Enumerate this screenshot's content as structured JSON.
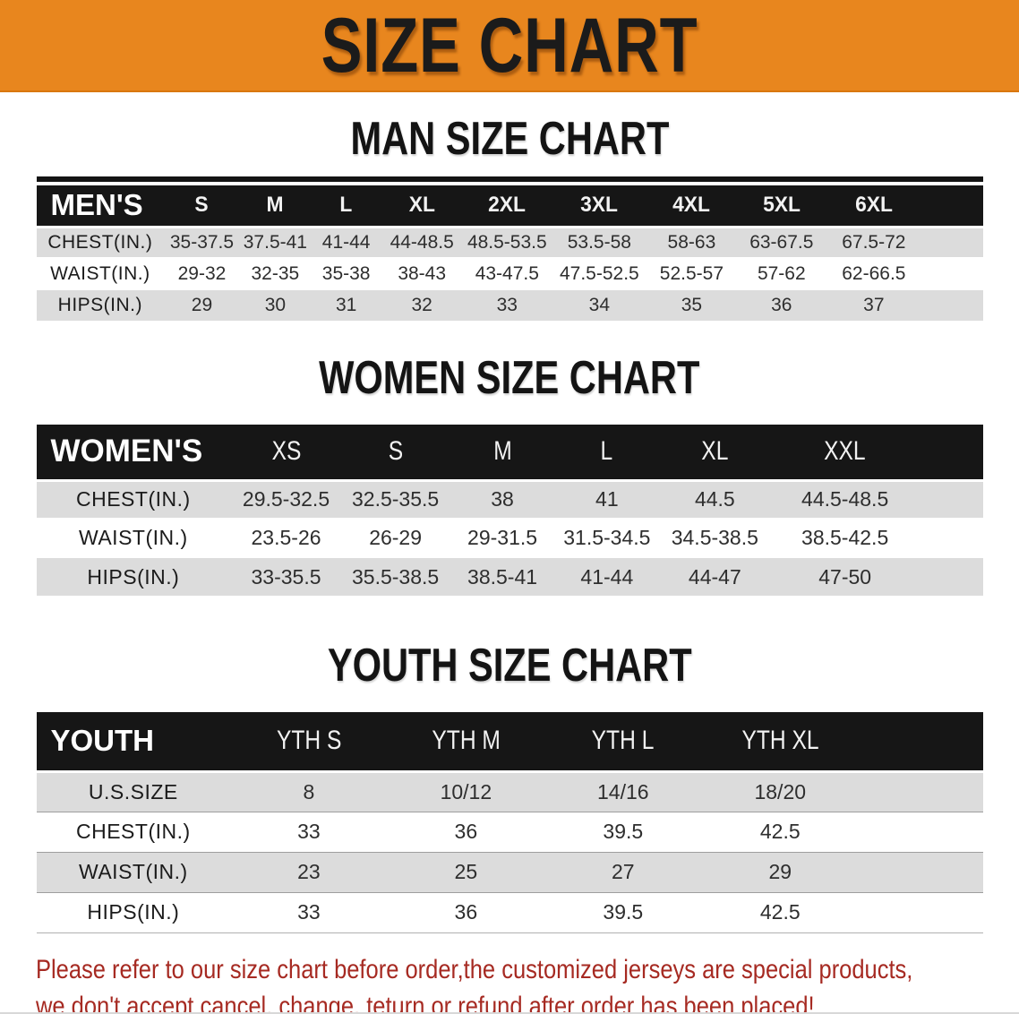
{
  "banner": {
    "title": "SIZE CHART",
    "background_color": "#E8861E"
  },
  "sections": [
    {
      "heading": "MAN SIZE CHART",
      "table": {
        "title": "MEN'S",
        "columns": [
          "S",
          "M",
          "L",
          "XL",
          "2XL",
          "3XL",
          "4XL",
          "5XL",
          "6XL"
        ],
        "rows": [
          {
            "label": "CHEST(IN.)",
            "values": [
              "35-37.5",
              "37.5-41",
              "41-44",
              "44-48.5",
              "48.5-53.5",
              "53.5-58",
              "58-63",
              "63-67.5",
              "67.5-72"
            ]
          },
          {
            "label": "WAIST(IN.)",
            "values": [
              "29-32",
              "32-35",
              "35-38",
              "38-43",
              "43-47.5",
              "47.5-52.5",
              "52.5-57",
              "57-62",
              "62-66.5"
            ]
          },
          {
            "label": "HIPS(IN.)",
            "values": [
              "29",
              "30",
              "31",
              "32",
              "33",
              "34",
              "35",
              "36",
              "37"
            ]
          }
        ]
      }
    },
    {
      "heading": "WOMEN SIZE CHART",
      "table": {
        "title": "WOMEN'S",
        "columns": [
          "XS",
          "S",
          "M",
          "L",
          "XL",
          "XXL"
        ],
        "rows": [
          {
            "label": "CHEST(IN.)",
            "values": [
              "29.5-32.5",
              "32.5-35.5",
              "38",
              "41",
              "44.5",
              "44.5-48.5"
            ]
          },
          {
            "label": "WAIST(IN.)",
            "values": [
              "23.5-26",
              "26-29",
              "29-31.5",
              "31.5-34.5",
              "34.5-38.5",
              "38.5-42.5"
            ]
          },
          {
            "label": "HIPS(IN.)",
            "values": [
              "33-35.5",
              "35.5-38.5",
              "38.5-41",
              "41-44",
              "44-47",
              "47-50"
            ]
          }
        ]
      }
    },
    {
      "heading": "YOUTH SIZE CHART",
      "table": {
        "title": "YOUTH",
        "columns": [
          "YTH S",
          "YTH M",
          "YTH L",
          "YTH XL"
        ],
        "rows": [
          {
            "label": "U.S.SIZE",
            "values": [
              "8",
              "10/12",
              "14/16",
              "18/20"
            ]
          },
          {
            "label": "CHEST(IN.)",
            "values": [
              "33",
              "36",
              "39.5",
              "42.5"
            ]
          },
          {
            "label": "WAIST(IN.)",
            "values": [
              "23",
              "25",
              "27",
              "29"
            ]
          },
          {
            "label": "HIPS(IN.)",
            "values": [
              "33",
              "36",
              "39.5",
              "42.5"
            ]
          }
        ]
      }
    }
  ],
  "disclaimer": {
    "color": "#A62A22",
    "lines": [
      "Please refer to our size chart before order,the customized jerseys are special products,",
      "we don't accept cancel, change, teturn or refund after order has been placed!"
    ]
  },
  "colors": {
    "table_header_bar": "#161616",
    "shaded_row": "#DCDCDC"
  }
}
